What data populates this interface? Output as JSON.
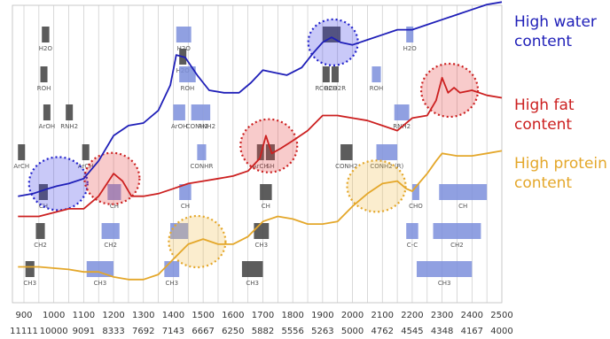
{
  "chart_data": {
    "type": "line",
    "xlabel": "",
    "ylabel": "",
    "x_ticks_nm": [
      900,
      1000,
      1100,
      1200,
      1300,
      1400,
      1500,
      1600,
      1700,
      1800,
      1900,
      2000,
      2100,
      2200,
      2300,
      2400,
      2500
    ],
    "x_ticks_wavenumber": [
      "11111",
      "10000",
      "9091",
      "8333",
      "7692",
      "7143",
      "6667",
      "6250",
      "5882",
      "5556",
      "5263",
      "5000",
      "4762",
      "4545",
      "4348",
      "4167",
      "4000"
    ],
    "xlim": [
      880,
      2500
    ],
    "grid_x": true,
    "series": [
      {
        "name": "High water content",
        "color": "#1f1fb8",
        "x": [
          880,
          930,
          980,
          1010,
          1050,
          1100,
          1150,
          1200,
          1250,
          1300,
          1350,
          1390,
          1410,
          1440,
          1480,
          1520,
          1570,
          1620,
          1660,
          1700,
          1740,
          1780,
          1830,
          1870,
          1900,
          1930,
          1960,
          2000,
          2050,
          2100,
          2150,
          2200,
          2250,
          2300,
          2350,
          2400,
          2450,
          2500
        ],
        "y": [
          0.38,
          0.39,
          0.41,
          0.42,
          0.43,
          0.45,
          0.52,
          0.62,
          0.66,
          0.67,
          0.72,
          0.82,
          0.94,
          0.93,
          0.86,
          0.8,
          0.79,
          0.79,
          0.83,
          0.88,
          0.87,
          0.86,
          0.89,
          0.95,
          0.99,
          1.01,
          0.99,
          0.98,
          1.0,
          1.02,
          1.04,
          1.04,
          1.06,
          1.08,
          1.1,
          1.12,
          1.14,
          1.15
        ]
      },
      {
        "name": "High fat content",
        "color": "#cc2020",
        "x": [
          880,
          950,
          1050,
          1100,
          1150,
          1200,
          1230,
          1260,
          1300,
          1350,
          1400,
          1450,
          1500,
          1550,
          1600,
          1650,
          1690,
          1710,
          1730,
          1760,
          1800,
          1850,
          1900,
          1950,
          2000,
          2050,
          2100,
          2150,
          2200,
          2250,
          2280,
          2300,
          2320,
          2340,
          2360,
          2400,
          2450,
          2500
        ],
        "y": [
          0.3,
          0.3,
          0.33,
          0.33,
          0.38,
          0.47,
          0.44,
          0.38,
          0.38,
          0.39,
          0.41,
          0.43,
          0.44,
          0.45,
          0.46,
          0.48,
          0.53,
          0.62,
          0.55,
          0.57,
          0.6,
          0.64,
          0.7,
          0.7,
          0.69,
          0.68,
          0.66,
          0.64,
          0.69,
          0.7,
          0.76,
          0.85,
          0.79,
          0.81,
          0.79,
          0.8,
          0.78,
          0.77
        ]
      },
      {
        "name": "High protein content",
        "color": "#e4a72a",
        "x": [
          880,
          950,
          1050,
          1100,
          1150,
          1200,
          1250,
          1300,
          1350,
          1400,
          1450,
          1500,
          1550,
          1600,
          1650,
          1700,
          1750,
          1800,
          1850,
          1900,
          1950,
          2000,
          2050,
          2100,
          2150,
          2180,
          2200,
          2250,
          2280,
          2300,
          2350,
          2400,
          2450,
          2500
        ],
        "y": [
          0.1,
          0.1,
          0.09,
          0.08,
          0.08,
          0.06,
          0.05,
          0.05,
          0.07,
          0.13,
          0.19,
          0.21,
          0.19,
          0.19,
          0.22,
          0.28,
          0.3,
          0.29,
          0.27,
          0.27,
          0.28,
          0.34,
          0.39,
          0.43,
          0.44,
          0.41,
          0.4,
          0.47,
          0.52,
          0.55,
          0.54,
          0.54,
          0.55,
          0.56
        ]
      }
    ],
    "legend": [
      {
        "lines": [
          "High water",
          "content"
        ],
        "color": "#1f1fb8"
      },
      {
        "lines": [
          "High fat",
          "content"
        ],
        "color": "#cc2020"
      },
      {
        "lines": [
          "High protein",
          "content"
        ],
        "color": "#e4a72a"
      }
    ],
    "circles": [
      {
        "x": 1935,
        "y": 0.99,
        "color": "#2222cc",
        "fill": "rgba(60,60,230,0.28)",
        "rx": 28,
        "ry": 26
      },
      {
        "x": 2325,
        "y": 0.8,
        "color": "#cc2020",
        "fill": "rgba(230,70,70,0.28)",
        "rx": 32,
        "ry": 30
      },
      {
        "x": 1720,
        "y": 0.58,
        "color": "#cc2020",
        "fill": "rgba(230,70,70,0.28)",
        "rx": 32,
        "ry": 30
      },
      {
        "x": 1015,
        "y": 0.43,
        "color": "#2222cc",
        "fill": "rgba(60,60,230,0.28)",
        "rx": 33,
        "ry": 30
      },
      {
        "x": 1195,
        "y": 0.45,
        "color": "#cc2020",
        "fill": "rgba(230,70,70,0.28)",
        "rx": 31,
        "ry": 29
      },
      {
        "x": 1480,
        "y": 0.2,
        "color": "#e4a72a",
        "fill": "rgba(240,190,80,0.28)",
        "rx": 32,
        "ry": 29
      },
      {
        "x": 2080,
        "y": 0.42,
        "color": "#e4a72a",
        "fill": "rgba(240,190,80,0.28)",
        "rx": 33,
        "ry": 29
      }
    ],
    "bands": [
      {
        "x0": 1420,
        "x1": 1440,
        "row": 1,
        "kind": "gray",
        "label": "H2O"
      },
      {
        "x0": 1410,
        "x1": 1460,
        "row": 0,
        "kind": "blue",
        "label": "H2O"
      },
      {
        "x0": 1900,
        "x1": 1960,
        "row": 0,
        "kind": "gray",
        "label": ""
      },
      {
        "x0": 2180,
        "x1": 2200,
        "row": 0,
        "kind": "blue",
        "label": "H2O"
      },
      {
        "x0": 960,
        "x1": 985,
        "row": 0,
        "kind": "gray",
        "label": "H2O"
      },
      {
        "x0": 955,
        "x1": 970,
        "row": 2,
        "kind": "gray",
        "label": "ROH"
      },
      {
        "x0": 1420,
        "x1": 1475,
        "row": 2,
        "kind": "blue",
        "label": "ROH"
      },
      {
        "x0": 1900,
        "x1": 1915,
        "row": 2,
        "kind": "gray",
        "label": "RCO2H"
      },
      {
        "x0": 1930,
        "x1": 1945,
        "row": 2,
        "kind": "gray",
        "label": "RCO2R"
      },
      {
        "x0": 2065,
        "x1": 2095,
        "row": 2,
        "kind": "blue",
        "label": "ROH"
      },
      {
        "x0": 965,
        "x1": 985,
        "row": 3,
        "kind": "gray",
        "label": "ArOH"
      },
      {
        "x0": 1040,
        "x1": 1060,
        "row": 3,
        "kind": "gray",
        "label": "RNH2"
      },
      {
        "x0": 1400,
        "x1": 1440,
        "row": 3,
        "kind": "blue",
        "label": "ArOH"
      },
      {
        "x0": 1460,
        "x1": 1500,
        "row": 3,
        "kind": "blue",
        "label": "CONH2"
      },
      {
        "x0": 1500,
        "x1": 1515,
        "row": 3,
        "kind": "blue",
        "label": "RNH2"
      },
      {
        "x0": 2140,
        "x1": 2190,
        "row": 3,
        "kind": "blue",
        "label": "RNH2"
      },
      {
        "x0": 880,
        "x1": 895,
        "row": 4,
        "kind": "gray",
        "label": "ArCH"
      },
      {
        "x0": 1095,
        "x1": 1110,
        "row": 4,
        "kind": "gray",
        "label": "ArCH"
      },
      {
        "x0": 1480,
        "x1": 1510,
        "row": 4,
        "kind": "blue",
        "label": "CONHR"
      },
      {
        "x0": 1680,
        "x1": 1700,
        "row": 4,
        "kind": "gray",
        "label": "ArCH"
      },
      {
        "x0": 1710,
        "x1": 1740,
        "row": 4,
        "kind": "gray",
        "label": "SH"
      },
      {
        "x0": 1960,
        "x1": 2000,
        "row": 4,
        "kind": "gray",
        "label": "CONH2"
      },
      {
        "x0": 2080,
        "x1": 2150,
        "row": 4,
        "kind": "blue",
        "label": "CONH2 (R)"
      },
      {
        "x0": 950,
        "x1": 980,
        "row": 5,
        "kind": "gray",
        "label": "CH"
      },
      {
        "x0": 1180,
        "x1": 1225,
        "row": 5,
        "kind": "blue",
        "label": "CH"
      },
      {
        "x0": 1420,
        "x1": 1460,
        "row": 5,
        "kind": "blue",
        "label": "CH"
      },
      {
        "x0": 1690,
        "x1": 1730,
        "row": 5,
        "kind": "gray",
        "label": "CH"
      },
      {
        "x0": 2200,
        "x1": 2220,
        "row": 5,
        "kind": "blue",
        "label": "CHO"
      },
      {
        "x0": 2290,
        "x1": 2450,
        "row": 5,
        "kind": "blue",
        "label": "CH"
      },
      {
        "x0": 940,
        "x1": 970,
        "row": 6,
        "kind": "gray",
        "label": "CH2"
      },
      {
        "x0": 1160,
        "x1": 1220,
        "row": 6,
        "kind": "blue",
        "label": "CH2"
      },
      {
        "x0": 1390,
        "x1": 1450,
        "row": 6,
        "kind": "blue",
        "label": ""
      },
      {
        "x0": 1670,
        "x1": 1720,
        "row": 6,
        "kind": "gray",
        "label": "CH3"
      },
      {
        "x0": 2180,
        "x1": 2220,
        "row": 6,
        "kind": "blue",
        "label": "C-C"
      },
      {
        "x0": 2270,
        "x1": 2430,
        "row": 6,
        "kind": "blue",
        "label": "CH2"
      },
      {
        "x0": 905,
        "x1": 935,
        "row": 7,
        "kind": "gray",
        "label": "CH3"
      },
      {
        "x0": 1110,
        "x1": 1200,
        "row": 7,
        "kind": "blue",
        "label": "CH3"
      },
      {
        "x0": 1370,
        "x1": 1420,
        "row": 7,
        "kind": "blue",
        "label": "CH3"
      },
      {
        "x0": 1630,
        "x1": 1700,
        "row": 7,
        "kind": "gray",
        "label": "CH3"
      },
      {
        "x0": 2215,
        "x1": 2400,
        "row": 7,
        "kind": "blue",
        "label": "CH3"
      }
    ]
  }
}
